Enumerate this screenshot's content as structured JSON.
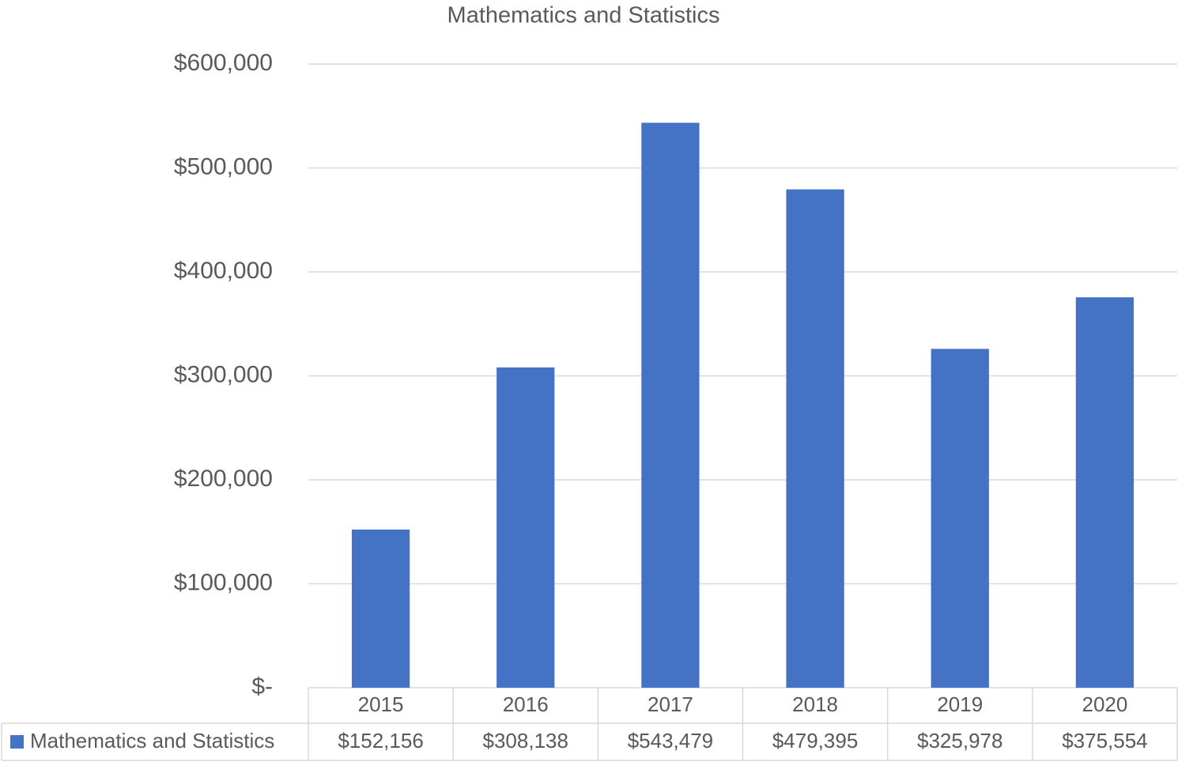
{
  "chart_data": {
    "type": "bar",
    "title": "Mathematics and Statistics",
    "categories": [
      "2015",
      "2016",
      "2017",
      "2018",
      "2019",
      "2020"
    ],
    "series": [
      {
        "name": "Mathematics and Statistics",
        "color": "#4472c4",
        "values": [
          152156,
          308138,
          543479,
          479395,
          325978,
          375554
        ],
        "value_labels": [
          "$152,156",
          "$308,138",
          "$543,479",
          "$479,395",
          "$325,978",
          "$375,554"
        ]
      }
    ],
    "ylim": [
      0,
      600000
    ],
    "yticks": [
      {
        "value": 0,
        "label": "$-"
      },
      {
        "value": 100000,
        "label": "$100,000"
      },
      {
        "value": 200000,
        "label": "$200,000"
      },
      {
        "value": 300000,
        "label": "$300,000"
      },
      {
        "value": 400000,
        "label": "$400,000"
      },
      {
        "value": 500000,
        "label": "$500,000"
      },
      {
        "value": 600000,
        "label": "$600,000"
      }
    ],
    "grid": true
  }
}
